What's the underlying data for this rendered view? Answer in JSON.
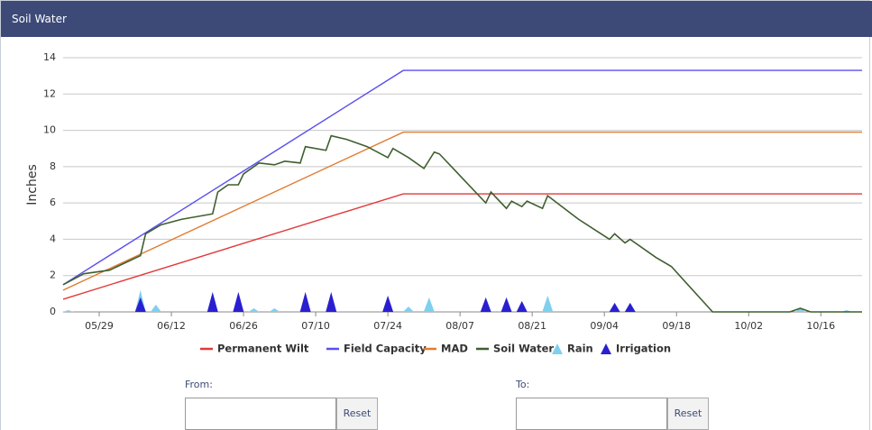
{
  "header": {
    "title": "Soil Water"
  },
  "chart_data": {
    "type": "line",
    "ylabel": "Inches",
    "xlim": [
      "05/22",
      "10/24"
    ],
    "xticks": [
      "05/29",
      "06/12",
      "06/26",
      "07/10",
      "07/24",
      "08/07",
      "08/21",
      "09/04",
      "09/18",
      "10/02",
      "10/16"
    ],
    "ylim": [
      0,
      14
    ],
    "yticks": [
      0,
      2,
      4,
      6,
      8,
      10,
      12,
      14
    ],
    "grid": true,
    "legend": "bottom",
    "series": [
      {
        "name": "Permanent Wilt",
        "color": "#e03a3a",
        "type": "line",
        "x": [
          "05/22",
          "07/27",
          "10/24"
        ],
        "values": [
          0.7,
          6.5,
          6.5
        ]
      },
      {
        "name": "Field Capacity",
        "color": "#5a4ff0",
        "type": "line",
        "x": [
          "05/22",
          "07/27",
          "10/24"
        ],
        "values": [
          1.5,
          13.3,
          13.3
        ]
      },
      {
        "name": "MAD",
        "color": "#e07b30",
        "type": "line",
        "x": [
          "05/22",
          "07/27",
          "10/24"
        ],
        "values": [
          1.2,
          9.9,
          9.9
        ]
      },
      {
        "name": "Soil Water",
        "color": "#3f5f2f",
        "type": "line",
        "x": [
          "05/22",
          "05/26",
          "05/31",
          "06/03",
          "06/06",
          "06/07",
          "06/10",
          "06/14",
          "06/20",
          "06/21",
          "06/23",
          "06/25",
          "06/26",
          "06/29",
          "07/02",
          "07/04",
          "07/07",
          "07/08",
          "07/12",
          "07/13",
          "07/16",
          "07/20",
          "07/24",
          "07/25",
          "07/28",
          "07/31",
          "08/02",
          "08/03",
          "08/12",
          "08/13",
          "08/16",
          "08/17",
          "08/19",
          "08/20",
          "08/23",
          "08/24",
          "08/30",
          "09/05",
          "09/06",
          "09/08",
          "09/09",
          "09/14",
          "09/17",
          "09/25",
          "10/10",
          "10/12",
          "10/14",
          "10/24"
        ],
        "values": [
          1.5,
          2.1,
          2.3,
          2.7,
          3.1,
          4.3,
          4.8,
          5.1,
          5.4,
          6.6,
          7.0,
          7.0,
          7.6,
          8.2,
          8.1,
          8.3,
          8.2,
          9.1,
          8.9,
          9.7,
          9.5,
          9.1,
          8.5,
          9.0,
          8.5,
          7.9,
          8.8,
          8.7,
          6.0,
          6.6,
          5.7,
          6.1,
          5.8,
          6.1,
          5.7,
          6.4,
          5.1,
          4.0,
          4.3,
          3.8,
          4.0,
          3.0,
          2.5,
          0,
          0,
          0.2,
          0,
          0
        ]
      },
      {
        "name": "Rain",
        "color": "#7fd0ef",
        "type": "spike",
        "x": [
          "05/23",
          "06/06",
          "06/09",
          "06/28",
          "07/02",
          "07/28",
          "08/01",
          "08/24",
          "10/12",
          "10/21"
        ],
        "values": [
          0.1,
          1.2,
          0.4,
          0.2,
          0.2,
          0.3,
          0.8,
          0.9,
          0.2,
          0.1
        ]
      },
      {
        "name": "Irrigation",
        "color": "#2a1fd0",
        "type": "spike",
        "x": [
          "06/06",
          "06/20",
          "06/25",
          "07/08",
          "07/13",
          "07/24",
          "08/12",
          "08/16",
          "08/19",
          "09/06",
          "09/09"
        ],
        "values": [
          0.8,
          1.1,
          1.1,
          1.1,
          1.1,
          0.9,
          0.8,
          0.8,
          0.6,
          0.5,
          0.5
        ]
      }
    ]
  },
  "form": {
    "from": {
      "label": "From:",
      "button": "Reset"
    },
    "to": {
      "label": "To:",
      "button": "Reset"
    }
  }
}
